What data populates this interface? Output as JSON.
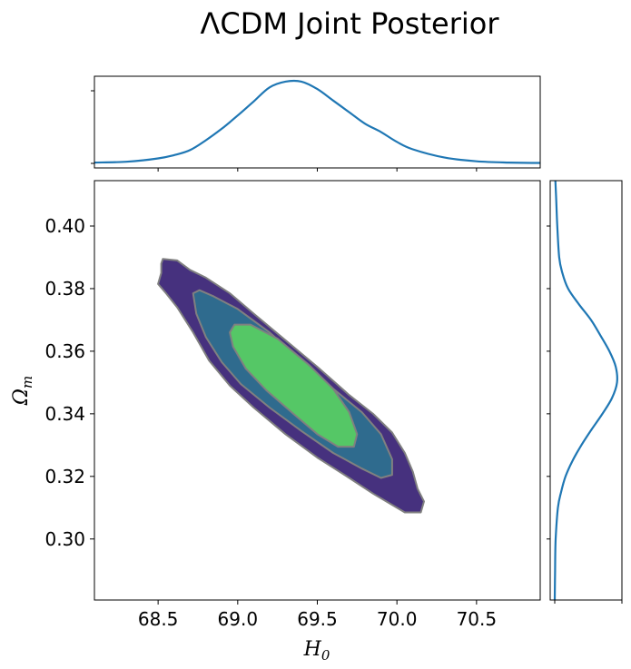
{
  "chart_data": {
    "type": "corner_plot",
    "title": "ΛCDM Joint Posterior",
    "xlabel": "H",
    "xlabel_sub": "0",
    "ylabel": "Ω",
    "ylabel_sub": "m",
    "xlim": [
      68.1,
      70.9
    ],
    "ylim": [
      0.2805,
      0.4145
    ],
    "xticks": [
      68.5,
      69.0,
      69.5,
      70.0,
      70.5
    ],
    "xtick_labels": [
      "68.5",
      "69.0",
      "69.5",
      "70.0",
      "70.5"
    ],
    "yticks": [
      0.3,
      0.32,
      0.34,
      0.36,
      0.38,
      0.4
    ],
    "ytick_labels": [
      "0.30",
      "0.32",
      "0.34",
      "0.36",
      "0.38",
      "0.40"
    ],
    "contours": [
      {
        "level": "outer",
        "fill": "#46317e",
        "points": [
          [
            68.53,
            0.3895
          ],
          [
            68.62,
            0.389
          ],
          [
            68.7,
            0.386
          ],
          [
            68.8,
            0.3835
          ],
          [
            68.95,
            0.3785
          ],
          [
            69.1,
            0.372
          ],
          [
            69.3,
            0.3635
          ],
          [
            69.5,
            0.355
          ],
          [
            69.7,
            0.346
          ],
          [
            69.85,
            0.34
          ],
          [
            69.97,
            0.334
          ],
          [
            70.05,
            0.3275
          ],
          [
            70.1,
            0.3215
          ],
          [
            70.13,
            0.316
          ],
          [
            70.17,
            0.312
          ],
          [
            70.15,
            0.3085
          ],
          [
            70.05,
            0.3085
          ],
          [
            69.95,
            0.3115
          ],
          [
            69.85,
            0.3145
          ],
          [
            69.7,
            0.3195
          ],
          [
            69.5,
            0.326
          ],
          [
            69.3,
            0.3335
          ],
          [
            69.1,
            0.342
          ],
          [
            68.95,
            0.349
          ],
          [
            68.82,
            0.357
          ],
          [
            68.72,
            0.366
          ],
          [
            68.62,
            0.374
          ],
          [
            68.55,
            0.3785
          ],
          [
            68.5,
            0.3815
          ],
          [
            68.52,
            0.385
          ],
          [
            68.52,
            0.388
          ],
          [
            68.53,
            0.3895
          ]
        ]
      },
      {
        "level": "middle",
        "fill": "#2f6b8e",
        "points": [
          [
            68.76,
            0.3795
          ],
          [
            68.85,
            0.3775
          ],
          [
            69.0,
            0.3735
          ],
          [
            69.2,
            0.366
          ],
          [
            69.4,
            0.357
          ],
          [
            69.6,
            0.348
          ],
          [
            69.78,
            0.3405
          ],
          [
            69.9,
            0.3335
          ],
          [
            69.97,
            0.3255
          ],
          [
            69.97,
            0.3205
          ],
          [
            69.9,
            0.3195
          ],
          [
            69.78,
            0.3225
          ],
          [
            69.6,
            0.3275
          ],
          [
            69.4,
            0.3345
          ],
          [
            69.2,
            0.342
          ],
          [
            69.02,
            0.3495
          ],
          [
            68.9,
            0.3565
          ],
          [
            68.8,
            0.3645
          ],
          [
            68.74,
            0.372
          ],
          [
            68.72,
            0.3785
          ],
          [
            68.76,
            0.3795
          ]
        ]
      },
      {
        "level": "inner",
        "fill": "#55c766",
        "points": [
          [
            68.98,
            0.3685
          ],
          [
            69.08,
            0.3685
          ],
          [
            69.25,
            0.364
          ],
          [
            69.45,
            0.3555
          ],
          [
            69.6,
            0.348
          ],
          [
            69.7,
            0.3405
          ],
          [
            69.75,
            0.3335
          ],
          [
            69.73,
            0.3295
          ],
          [
            69.63,
            0.3295
          ],
          [
            69.5,
            0.3335
          ],
          [
            69.35,
            0.34
          ],
          [
            69.18,
            0.3475
          ],
          [
            69.05,
            0.3545
          ],
          [
            68.97,
            0.3615
          ],
          [
            68.95,
            0.366
          ],
          [
            68.98,
            0.3685
          ]
        ]
      }
    ],
    "marginal_x": {
      "x": [
        68.1,
        68.3,
        68.5,
        68.6,
        68.7,
        68.8,
        68.9,
        69.0,
        69.1,
        69.2,
        69.3,
        69.4,
        69.5,
        69.6,
        69.7,
        69.8,
        69.9,
        70.0,
        70.1,
        70.3,
        70.5,
        70.7,
        70.9
      ],
      "density": [
        0.01,
        0.02,
        0.06,
        0.1,
        0.16,
        0.28,
        0.42,
        0.58,
        0.75,
        0.92,
        0.99,
        0.99,
        0.9,
        0.76,
        0.62,
        0.48,
        0.38,
        0.26,
        0.17,
        0.07,
        0.025,
        0.01,
        0.005
      ]
    },
    "marginal_y": {
      "y": [
        0.2805,
        0.29,
        0.3,
        0.31,
        0.315,
        0.32,
        0.325,
        0.33,
        0.335,
        0.34,
        0.345,
        0.35,
        0.355,
        0.36,
        0.365,
        0.37,
        0.375,
        0.38,
        0.385,
        0.39,
        0.4,
        0.41,
        0.4145
      ],
      "density": [
        0.0,
        0.005,
        0.015,
        0.05,
        0.1,
        0.17,
        0.28,
        0.42,
        0.58,
        0.75,
        0.9,
        0.98,
        0.96,
        0.86,
        0.72,
        0.57,
        0.38,
        0.21,
        0.12,
        0.07,
        0.04,
        0.02,
        0.01
      ]
    },
    "colors": {
      "line": "#1f77b4",
      "contour_edge": "#808080",
      "outer": "#46317e",
      "middle": "#2f6b8e",
      "inner": "#55c766"
    }
  }
}
